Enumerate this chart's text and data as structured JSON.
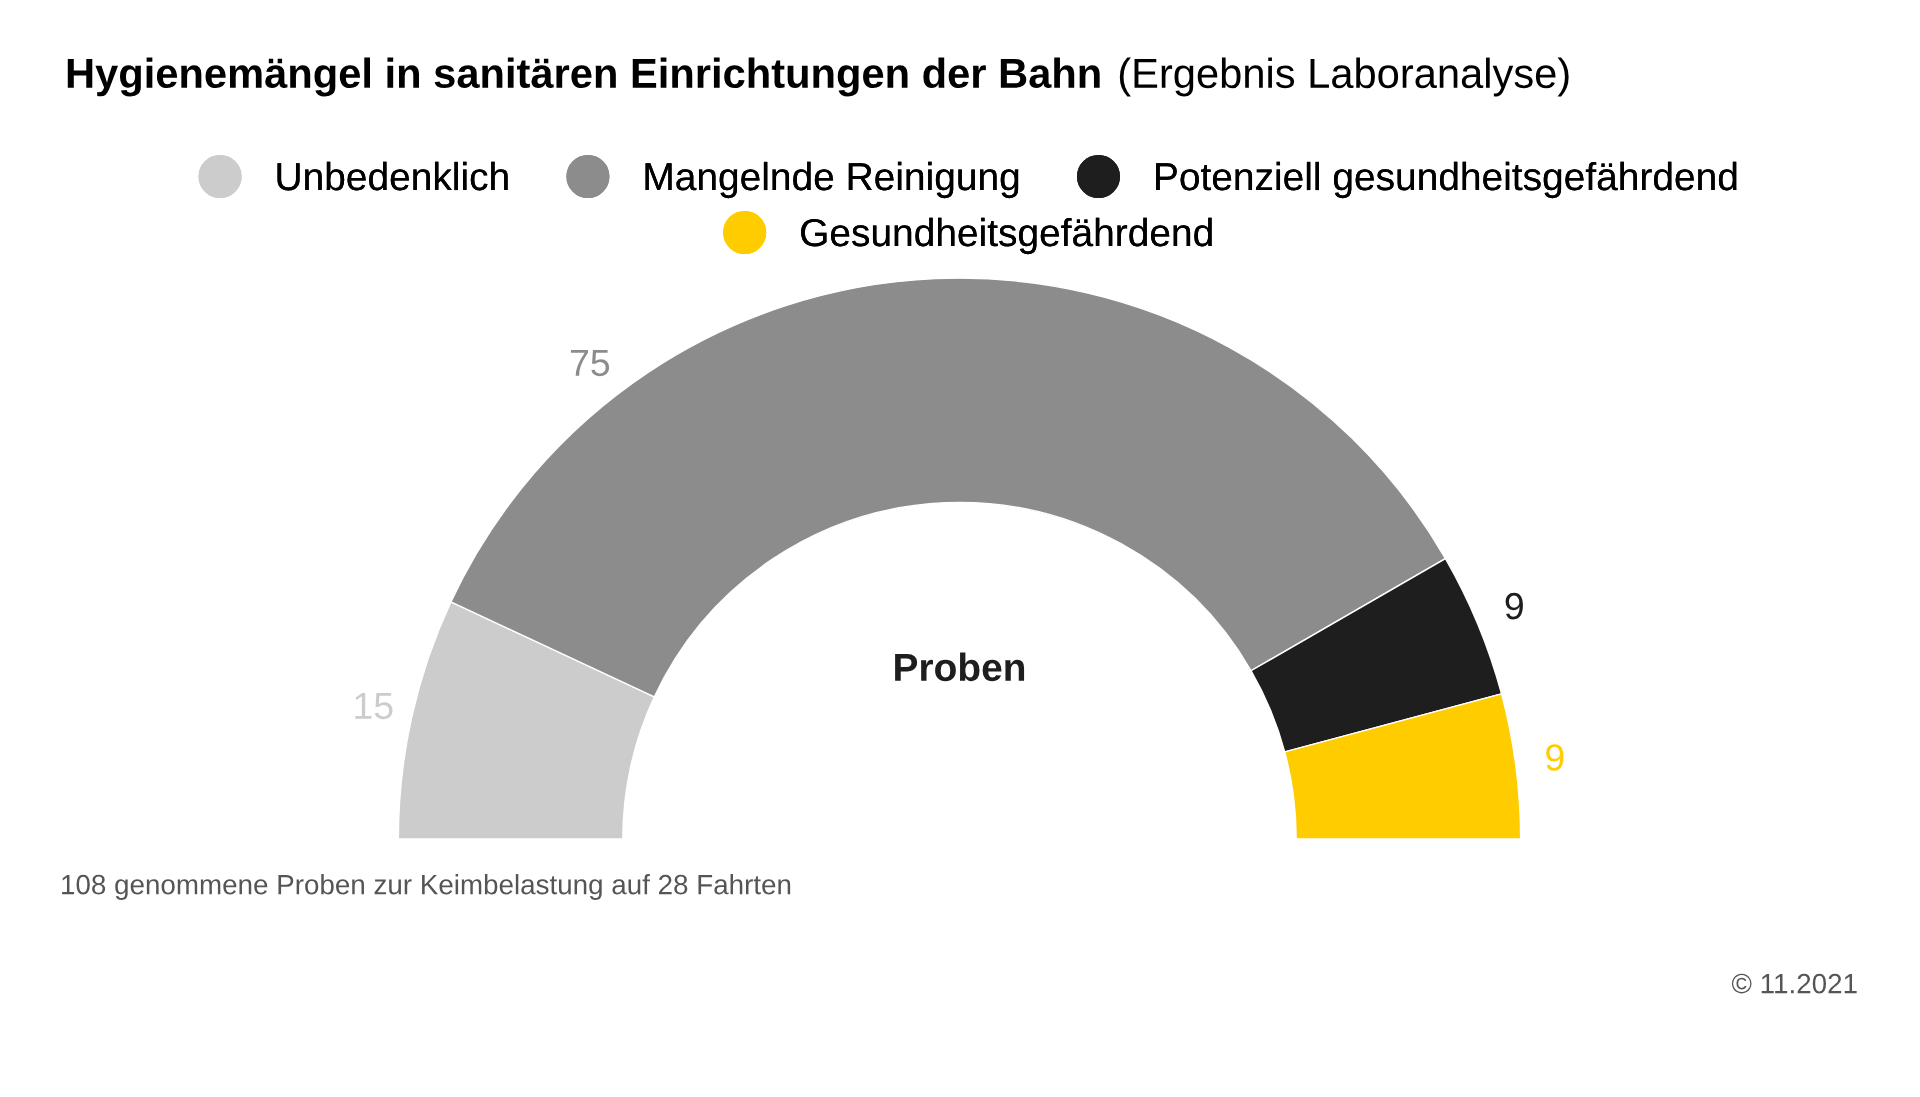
{
  "chart_data": {
    "type": "donut",
    "title": "Hygienemängel in sanitären Einrichtungen der Bahn",
    "subtitle": "(Ergebnis Laboranalyse)",
    "categories": [
      "Unbedenklich",
      "Mangelnde Reinigung",
      "Potenziell gesundheitsgefährdend",
      "Gesundheitsgefährdend"
    ],
    "values": [
      15,
      75,
      9,
      9
    ],
    "colors": [
      "#cccccc",
      "#8c8c8c",
      "#1e1e1e",
      "#ffcc00"
    ],
    "data_labels": true,
    "legend": "top",
    "annotations": [
      "Proben",
      "108 genommene Proben zur Keimbelastung auf 28 Fahrten",
      "© 11.2021"
    ]
  }
}
